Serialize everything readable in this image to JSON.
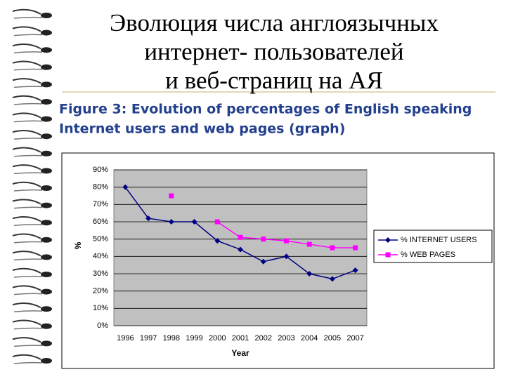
{
  "chart_data": {
    "type": "line",
    "title": [
      "Эволюция числа англоязычных",
      "интернет- пользователей",
      "и веб-страниц на АЯ"
    ],
    "subtitle": [
      "Figure 3:  Evolution of percentages of English speaking",
      "Internet users and web pages (graph)"
    ],
    "x_label": "Year",
    "y_label": "%",
    "categories": [
      "1996",
      "1997",
      "1998",
      "1999",
      "2000",
      "2001",
      "2002",
      "2003",
      "2004",
      "2005",
      "2007"
    ],
    "series": [
      {
        "name": "% INTERNET USERS",
        "color": "#000080",
        "marker": "diamond",
        "values": [
          80,
          62,
          60,
          60,
          49,
          44,
          37,
          40,
          30,
          27,
          32
        ]
      },
      {
        "name": "% WEB PAGES",
        "color": "#ff00ff",
        "marker": "square",
        "values": [
          null,
          null,
          75,
          null,
          60,
          51,
          50,
          49,
          47,
          45,
          45
        ]
      }
    ],
    "ylim": [
      0,
      90
    ],
    "yticks": [
      {
        "value": 0,
        "label": "0%"
      },
      {
        "value": 10,
        "label": "10%"
      },
      {
        "value": 20,
        "label": "20%"
      },
      {
        "value": 30,
        "label": "30%"
      },
      {
        "value": 40,
        "label": "40%"
      },
      {
        "value": 50,
        "label": "50%"
      },
      {
        "value": 60,
        "label": "60%"
      },
      {
        "value": 70,
        "label": "70%"
      },
      {
        "value": 80,
        "label": "80%"
      },
      {
        "value": 90,
        "label": "90%"
      }
    ],
    "grid": true,
    "legend": "right"
  }
}
